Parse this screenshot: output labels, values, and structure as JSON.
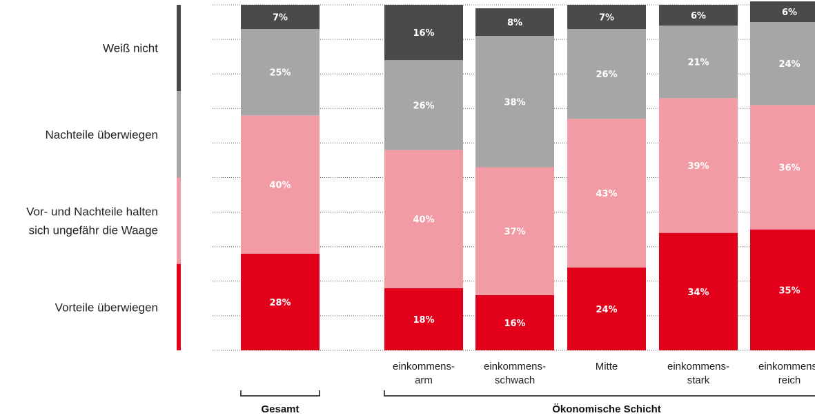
{
  "chart_data": {
    "type": "bar",
    "stacked": true,
    "orientation": "vertical",
    "categories": [
      [
        "Gesamt"
      ],
      [
        "einkommens-",
        "arm"
      ],
      [
        "einkommens-",
        "schwach"
      ],
      [
        "Mitte"
      ],
      [
        "einkommens-",
        "stark"
      ],
      [
        "einkommens-",
        "reich"
      ]
    ],
    "groups": [
      {
        "label": "Gesamt",
        "members": [
          0
        ]
      },
      {
        "label": "Ökonomische Schicht",
        "members": [
          1,
          2,
          3,
          4,
          5
        ]
      }
    ],
    "series": [
      {
        "name": "Vorteile überwiegen",
        "color": "#e2001a",
        "values": [
          28,
          18,
          16,
          24,
          34,
          35
        ]
      },
      {
        "name": "Vor- und Nachteile halten sich ungefähr die Waage",
        "name_lines": [
          "Vor- und Nachteile halten",
          "sich ungefähr die Waage"
        ],
        "color": "#f39ba4",
        "values": [
          40,
          40,
          37,
          43,
          39,
          36
        ]
      },
      {
        "name": "Nachteile überwiegen",
        "color": "#a6a6a6",
        "values": [
          25,
          26,
          38,
          26,
          21,
          24
        ]
      },
      {
        "name": "Weiß nicht",
        "color": "#4a4a4a",
        "values": [
          7,
          16,
          8,
          7,
          6,
          6
        ]
      }
    ],
    "value_suffix": "%",
    "ylim": [
      0,
      100
    ],
    "grid": true,
    "grid_style": "dotted",
    "legend_position": "left"
  }
}
